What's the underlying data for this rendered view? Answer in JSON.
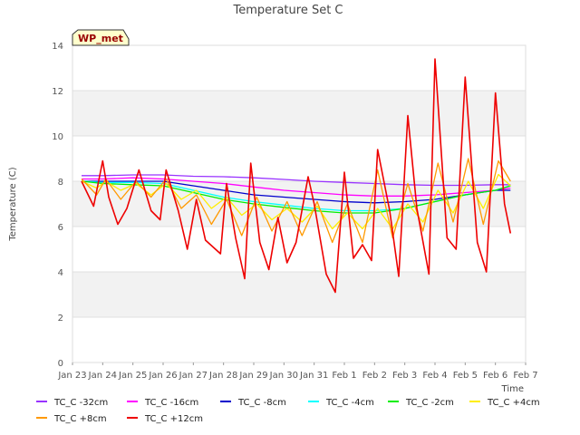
{
  "chart_data": {
    "type": "line",
    "title": "Temperature Set C",
    "xlabel": "Time",
    "ylabel": "Temperature (C)",
    "badge": "WP_met",
    "ylim": [
      0,
      14
    ],
    "yticks": [
      0,
      2,
      4,
      6,
      8,
      10,
      12,
      14
    ],
    "xlim": [
      0,
      15
    ],
    "xticks": [
      0,
      1,
      2,
      3,
      4,
      5,
      6,
      7,
      8,
      9,
      10,
      11,
      12,
      13,
      14,
      15
    ],
    "xtick_labels": [
      "Jan 23",
      "Jan 24",
      "Jan 25",
      "Jan 26",
      "Jan 27",
      "Jan 28",
      "Jan 29",
      "Jan 30",
      "Jan 31",
      "Feb 1",
      "Feb 2",
      "Feb 3",
      "Feb 4",
      "Feb 5",
      "Feb 6",
      "Feb 7"
    ],
    "grid": true,
    "legend_position": "bottom",
    "series": [
      {
        "name": "TC_C -32cm",
        "color": "#9933ff",
        "x": [
          0.3,
          1,
          2,
          3,
          4,
          5,
          6,
          7,
          8,
          9,
          10,
          11,
          12,
          13,
          14,
          14.5
        ],
        "y": [
          8.25,
          8.25,
          8.28,
          8.28,
          8.22,
          8.2,
          8.15,
          8.08,
          8.0,
          7.95,
          7.9,
          7.85,
          7.82,
          7.82,
          7.85,
          7.85
        ]
      },
      {
        "name": "TC_C -16cm",
        "color": "#ff00ff",
        "x": [
          0.3,
          1,
          2,
          3,
          4,
          5,
          6,
          7,
          8,
          9,
          10,
          11,
          12,
          13,
          14,
          14.5
        ],
        "y": [
          8.1,
          8.1,
          8.15,
          8.1,
          8.0,
          7.9,
          7.75,
          7.6,
          7.5,
          7.4,
          7.35,
          7.35,
          7.4,
          7.5,
          7.6,
          7.7
        ]
      },
      {
        "name": "TC_C -8cm",
        "color": "#0000cc",
        "x": [
          0.3,
          1,
          2,
          3,
          4,
          5,
          6,
          7,
          8,
          9,
          10,
          11,
          12,
          13,
          14,
          14.5
        ],
        "y": [
          8.0,
          8.0,
          8.0,
          8.0,
          7.8,
          7.6,
          7.4,
          7.3,
          7.2,
          7.1,
          7.05,
          7.1,
          7.2,
          7.4,
          7.6,
          7.6
        ]
      },
      {
        "name": "TC_C -4cm",
        "color": "#00ffff",
        "x": [
          0.3,
          1,
          2,
          3,
          4,
          5,
          6,
          7,
          8,
          9,
          10,
          11,
          12,
          13,
          14,
          14.5
        ],
        "y": [
          8.0,
          7.95,
          7.95,
          7.9,
          7.6,
          7.3,
          7.1,
          6.95,
          6.8,
          6.7,
          6.7,
          6.8,
          7.1,
          7.4,
          7.6,
          7.8
        ]
      },
      {
        "name": "TC_C -2cm",
        "color": "#00ee00",
        "x": [
          0.3,
          1,
          2,
          3,
          4,
          5,
          6,
          7,
          8,
          9,
          10,
          11,
          12,
          13,
          14,
          14.5
        ],
        "y": [
          8.0,
          7.9,
          7.85,
          7.8,
          7.5,
          7.2,
          7.0,
          6.85,
          6.7,
          6.6,
          6.6,
          6.8,
          7.1,
          7.4,
          7.6,
          7.8
        ]
      },
      {
        "name": "TC_C +4cm",
        "color": "#ffee00",
        "x": [
          0.3,
          0.8,
          1.1,
          1.6,
          2.1,
          2.6,
          3.1,
          3.6,
          4.1,
          4.6,
          5.1,
          5.6,
          6.1,
          6.6,
          7.1,
          7.6,
          8.1,
          8.6,
          9.1,
          9.6,
          10.1,
          10.6,
          11.1,
          11.6,
          12.1,
          12.6,
          13.1,
          13.6,
          14.1,
          14.5
        ],
        "y": [
          8.0,
          7.7,
          8.0,
          7.6,
          7.9,
          7.4,
          7.9,
          7.2,
          7.6,
          6.8,
          7.3,
          6.5,
          7.0,
          6.3,
          6.8,
          6.2,
          6.9,
          5.9,
          6.6,
          5.9,
          6.8,
          5.9,
          7.0,
          6.2,
          7.6,
          6.6,
          8.0,
          6.8,
          8.3,
          7.8
        ]
      },
      {
        "name": "TC_C +8cm",
        "color": "#ff9900",
        "x": [
          0.3,
          0.8,
          1.1,
          1.6,
          2.1,
          2.6,
          3.1,
          3.6,
          4.1,
          4.6,
          5.1,
          5.6,
          6.1,
          6.6,
          7.1,
          7.6,
          8.1,
          8.6,
          9.1,
          9.6,
          10.1,
          10.6,
          11.1,
          11.6,
          12.1,
          12.6,
          13.1,
          13.6,
          14.1,
          14.5
        ],
        "y": [
          8.1,
          7.4,
          8.1,
          7.2,
          8.0,
          7.3,
          8.1,
          6.8,
          7.4,
          6.1,
          7.2,
          5.6,
          7.3,
          5.8,
          7.1,
          5.6,
          7.1,
          5.3,
          7.0,
          5.3,
          8.5,
          5.5,
          7.9,
          5.8,
          8.8,
          6.2,
          9.0,
          6.1,
          8.9,
          8.0
        ]
      },
      {
        "name": "TC_C +12cm",
        "color": "#ee0000",
        "x": [
          0.3,
          0.7,
          1.0,
          1.2,
          1.5,
          1.8,
          2.2,
          2.6,
          2.9,
          3.1,
          3.5,
          3.8,
          4.1,
          4.4,
          4.9,
          5.1,
          5.4,
          5.7,
          5.9,
          6.2,
          6.5,
          6.8,
          7.1,
          7.4,
          7.8,
          8.0,
          8.4,
          8.7,
          9.0,
          9.3,
          9.6,
          9.9,
          10.1,
          10.5,
          10.8,
          11.1,
          11.4,
          11.8,
          12.0,
          12.4,
          12.7,
          13.0,
          13.4,
          13.7,
          14.0,
          14.3,
          14.5
        ],
        "y": [
          8.0,
          6.9,
          8.9,
          7.3,
          6.1,
          6.8,
          8.5,
          6.7,
          6.3,
          8.5,
          6.7,
          5.0,
          7.2,
          5.4,
          4.8,
          7.9,
          5.5,
          3.7,
          8.8,
          5.3,
          4.1,
          6.4,
          4.4,
          5.3,
          8.2,
          7.0,
          3.9,
          3.1,
          8.4,
          4.6,
          5.2,
          4.5,
          9.4,
          6.7,
          3.8,
          10.9,
          6.8,
          3.9,
          13.4,
          5.5,
          5.0,
          12.6,
          5.3,
          4.0,
          11.9,
          7.0,
          5.7
        ]
      }
    ]
  }
}
